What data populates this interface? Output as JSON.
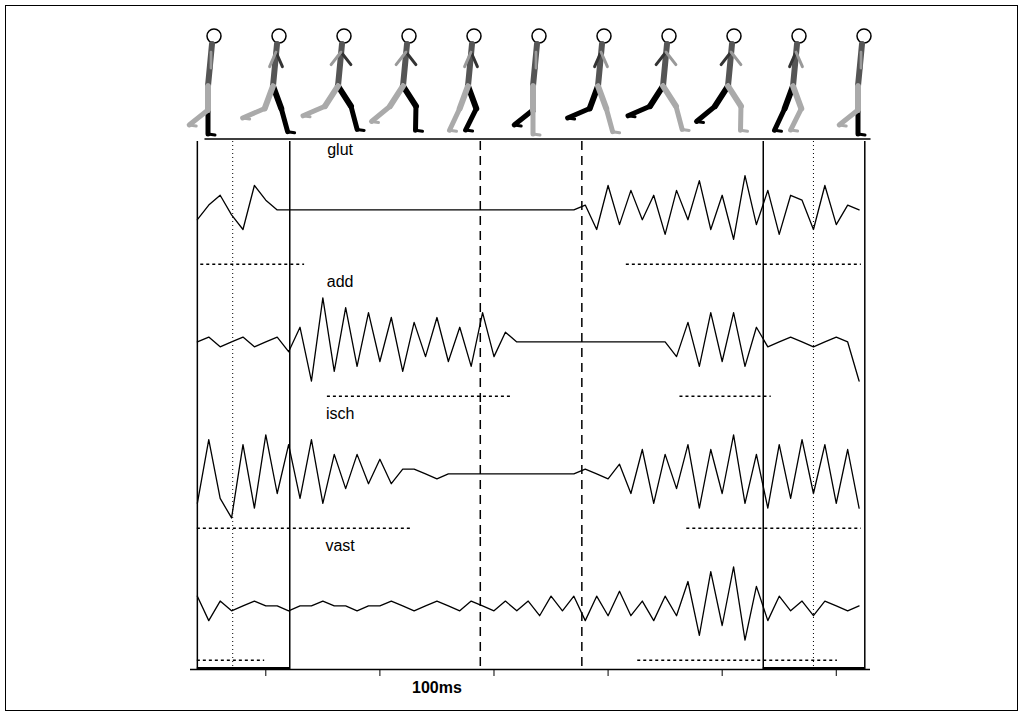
{
  "chart_data": {
    "type": "line",
    "color": "#000000",
    "tick_labels": false,
    "x": [
      0,
      10,
      20,
      30,
      40,
      50,
      60,
      70,
      80,
      90,
      100,
      110,
      120,
      130,
      140,
      150,
      160,
      170,
      180,
      190,
      200,
      210,
      220,
      230,
      240,
      250,
      260,
      270,
      280,
      290,
      300,
      310,
      320,
      330,
      340,
      350,
      360,
      370,
      380,
      390,
      400,
      410,
      420,
      430,
      440,
      450,
      460,
      470,
      480,
      490,
      500,
      510,
      520,
      530,
      540,
      550,
      560,
      570,
      580
    ],
    "xlim": [
      -6,
      590
    ],
    "xticks": [
      60,
      160,
      260,
      360,
      460,
      560
    ],
    "ylim": [
      -13,
      14
    ],
    "series": [
      {
        "name": "glut",
        "values": [
          -2,
          1,
          3,
          -1,
          -4,
          5,
          2,
          0,
          0,
          0,
          0,
          0,
          0,
          0,
          0,
          0,
          0,
          0,
          0,
          0,
          0,
          0,
          0,
          0,
          0,
          0,
          0,
          0,
          0,
          0,
          0,
          0,
          0,
          0,
          1,
          -4,
          5,
          -3,
          4,
          -2,
          3,
          -5,
          4,
          -2,
          6,
          -4,
          3,
          -6,
          7,
          -3,
          4,
          -5,
          3,
          2,
          -4,
          5,
          -3,
          1,
          0
        ]
      },
      {
        "name": "add",
        "values": [
          0,
          1,
          -1,
          0,
          1,
          -1,
          0,
          1,
          -2,
          3,
          -8,
          9,
          -6,
          7,
          -5,
          6,
          -4,
          5,
          -6,
          4,
          -3,
          5,
          -4,
          3,
          -5,
          6,
          -3,
          2,
          0,
          0,
          0,
          0,
          0,
          0,
          0,
          0,
          0,
          0,
          0,
          0,
          0,
          0,
          -3,
          4,
          -5,
          6,
          -4,
          6,
          -5,
          3,
          -1,
          0,
          1,
          0,
          -1,
          0,
          1,
          0,
          -8
        ]
      },
      {
        "name": "isch",
        "values": [
          -6,
          7,
          -5,
          -9,
          6,
          -7,
          8,
          -4,
          6,
          -5,
          7,
          -6,
          4,
          -3,
          4,
          -2,
          3,
          -2,
          1,
          1,
          0,
          -1,
          0,
          0,
          0,
          0,
          0,
          0,
          0,
          0,
          0,
          0,
          0,
          0,
          1,
          0,
          -1,
          2,
          -4,
          5,
          -6,
          4,
          -3,
          6,
          -7,
          5,
          -4,
          8,
          -6,
          4,
          -7,
          6,
          -5,
          7,
          -4,
          6,
          -6,
          5,
          -7
        ]
      },
      {
        "name": "vast",
        "values": [
          2,
          -3,
          1,
          -1,
          0,
          1,
          0,
          0,
          -1,
          0,
          0,
          1,
          0,
          0,
          -1,
          0,
          0,
          1,
          0,
          -1,
          0,
          1,
          0,
          -1,
          1,
          0,
          -1,
          1,
          -1,
          1,
          -2,
          2,
          -1,
          2,
          -3,
          2,
          -2,
          3,
          -2,
          1,
          -3,
          2,
          -2,
          5,
          -6,
          7,
          -4,
          8,
          -7,
          4,
          -3,
          2,
          -1,
          1,
          -2,
          1,
          0,
          -1,
          0
        ]
      }
    ],
    "activity": {
      "glut": [
        [
          3,
          94
        ],
        [
          376,
          582
        ]
      ],
      "add": [
        [
          114,
          277
        ],
        [
          423,
          503
        ]
      ],
      "isch": [
        [
          0,
          188
        ],
        [
          429,
          582
        ]
      ],
      "vast": [
        [
          0,
          59
        ],
        [
          386,
          561
        ]
      ]
    },
    "events": {
      "solid": [
        0,
        81,
        496,
        585
      ],
      "dashed": [
        248,
        337
      ],
      "dotted": [
        31,
        540
      ]
    },
    "contact": [
      [
        0,
        81
      ],
      [
        496,
        585
      ]
    ],
    "scale_bar": {
      "from": 160,
      "to": 260,
      "label": "100ms"
    }
  }
}
